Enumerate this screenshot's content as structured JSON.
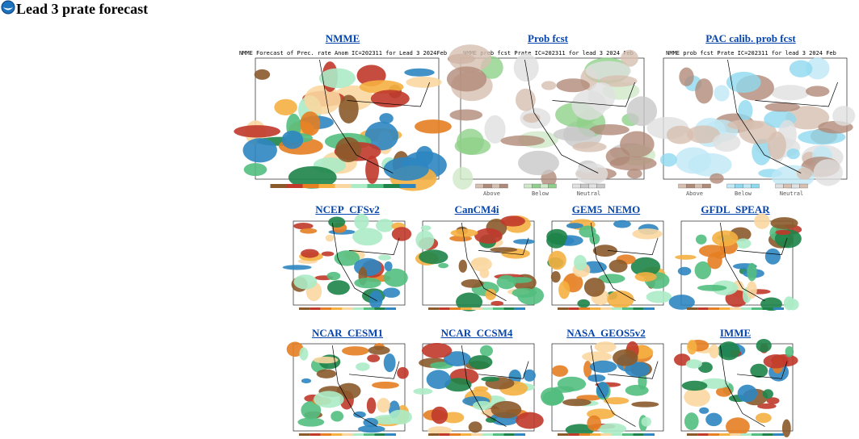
{
  "header": {
    "title": "Lead 3 prate forecast"
  },
  "panels": [
    {
      "label": "NMME",
      "caption": "NMME Forecast of Prec. rate Anom IC=202311 for Lead 3 2024Feb"
    },
    {
      "label": "Prob fcst",
      "caption": "NMME prob fcst Prate IC=202311 for lead 3 2024 Feb",
      "legend": [
        "Above",
        "Below",
        "Neutral"
      ]
    },
    {
      "label": "PAC calib. prob fcst",
      "caption": "NMME prob fcst Prate IC=202311 for lead 3 2024 Feb",
      "legend": [
        "Above",
        "Below",
        "Neutral"
      ]
    },
    {
      "label": "NCEP_CFSv2"
    },
    {
      "label": "CanCM4i"
    },
    {
      "label": "GEM5_NEMO"
    },
    {
      "label": "GFDL_SPEAR"
    },
    {
      "label": "NCAR_CESM1"
    },
    {
      "label": "NCAR_CCSM4"
    },
    {
      "label": "NASA_GEOS5v2"
    },
    {
      "label": "IMME"
    }
  ]
}
